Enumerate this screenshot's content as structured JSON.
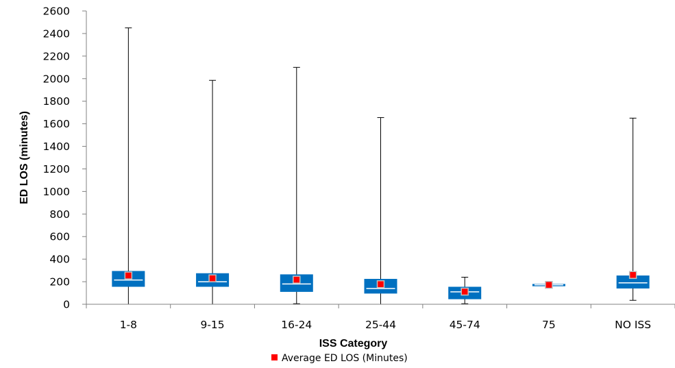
{
  "chart_data": {
    "type": "boxplot",
    "xlabel": "ISS Category",
    "ylabel": "ED LOS (minutes)",
    "ylim": [
      0,
      2600
    ],
    "ytick_step": 200,
    "grid": false,
    "legend_position": "bottom-center",
    "categories": [
      "1-8",
      "9-15",
      "16-24",
      "25-44",
      "45-74",
      "75",
      "NO ISS"
    ],
    "series": [
      {
        "name": "Average ED LOS (Minutes)",
        "boxes": [
          {
            "category": "1-8",
            "min": 0,
            "q1": 155,
            "median": 215,
            "q3": 295,
            "max": 2450,
            "mean": 255
          },
          {
            "category": "9-15",
            "min": 0,
            "q1": 155,
            "median": 200,
            "q3": 275,
            "max": 1985,
            "mean": 230
          },
          {
            "category": "16-24",
            "min": 5,
            "q1": 110,
            "median": 180,
            "q3": 265,
            "max": 2100,
            "mean": 218
          },
          {
            "category": "25-44",
            "min": 0,
            "q1": 95,
            "median": 140,
            "q3": 225,
            "max": 1655,
            "mean": 178
          },
          {
            "category": "45-74",
            "min": 5,
            "q1": 45,
            "median": 110,
            "q3": 155,
            "max": 240,
            "mean": 112
          },
          {
            "category": "75",
            "min": 160,
            "q1": 160,
            "median": 172,
            "q3": 180,
            "max": 182,
            "mean": 172
          },
          {
            "category": "NO ISS",
            "min": 35,
            "q1": 140,
            "median": 190,
            "q3": 255,
            "max": 1650,
            "mean": 260
          }
        ]
      }
    ],
    "colors": {
      "box": "#0070c0",
      "median_line": "#ffffff",
      "whisker": "#000000",
      "mean_marker": "#ff0000",
      "mean_marker_border": "#c0c0c0",
      "axis": "#808080"
    }
  }
}
